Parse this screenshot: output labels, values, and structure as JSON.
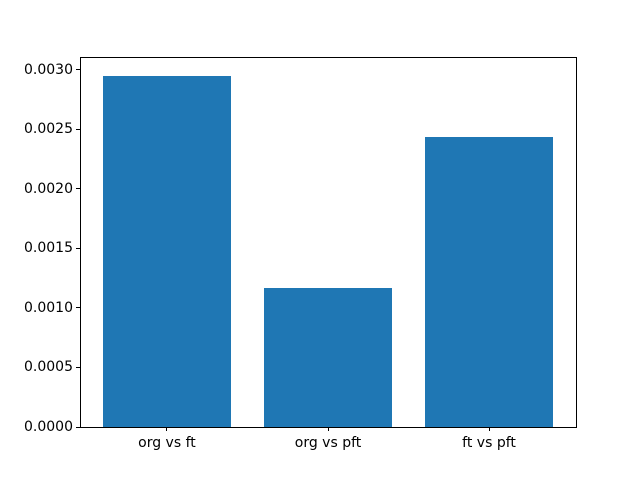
{
  "chart_data": {
    "type": "bar",
    "title": "",
    "xlabel": "",
    "ylabel": "",
    "categories": [
      "org vs ft",
      "org vs pft",
      "ft vs pft"
    ],
    "values": [
      0.00295,
      0.00117,
      0.00244
    ],
    "ylim": [
      0,
      0.0031
    ],
    "yticks": [
      0,
      0.0005,
      0.001,
      0.0015,
      0.002,
      0.0025,
      0.003
    ],
    "ytick_labels": [
      "0.0000",
      "0.0005",
      "0.0010",
      "0.0015",
      "0.0020",
      "0.0025",
      "0.0030"
    ],
    "bar_color": "#1f77b4",
    "bar_width_fraction": 0.8,
    "background_color": "#ffffff",
    "spine_color": "#000000",
    "grid": false,
    "legend": false
  }
}
